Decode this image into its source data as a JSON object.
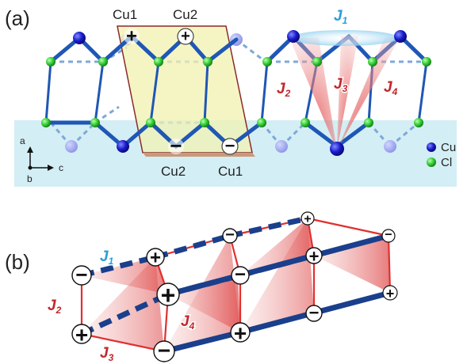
{
  "panels": {
    "a": "(a)",
    "b": "(b)"
  },
  "sites_a": {
    "top_left": "Cu1",
    "top_right": "Cu2",
    "bottom_left": "Cu2",
    "bottom_right": "Cu1"
  },
  "couplings_a": {
    "j1": {
      "name": "J",
      "sub": "1"
    },
    "j2": {
      "name": "J",
      "sub": "2"
    },
    "j3": {
      "name": "J",
      "sub": "3"
    },
    "j4": {
      "name": "J",
      "sub": "4"
    }
  },
  "couplings_b": {
    "j1": {
      "name": "J",
      "sub": "1"
    },
    "j2": {
      "name": "J",
      "sub": "2"
    },
    "j3": {
      "name": "J",
      "sub": "3"
    },
    "j4": {
      "name": "J",
      "sub": "4"
    }
  },
  "axes": {
    "a": "a",
    "b": "b",
    "c": "c"
  },
  "legend": [
    {
      "label": "Cu",
      "color": "#1a1acc"
    },
    {
      "label": "Cl",
      "color": "#33cc33"
    }
  ],
  "spins": {
    "plus": "+",
    "minus": "−"
  },
  "colors": {
    "j1": "#2a9fd6",
    "j_red": "#c0282c",
    "chain_blue": "#1f57b5",
    "chain_blue_dark": "#1a3f8c",
    "band": "#d3eef5",
    "cell": "#f2f2b0",
    "cell_edge": "#8a2a2a",
    "red_bond": "#e03030"
  }
}
